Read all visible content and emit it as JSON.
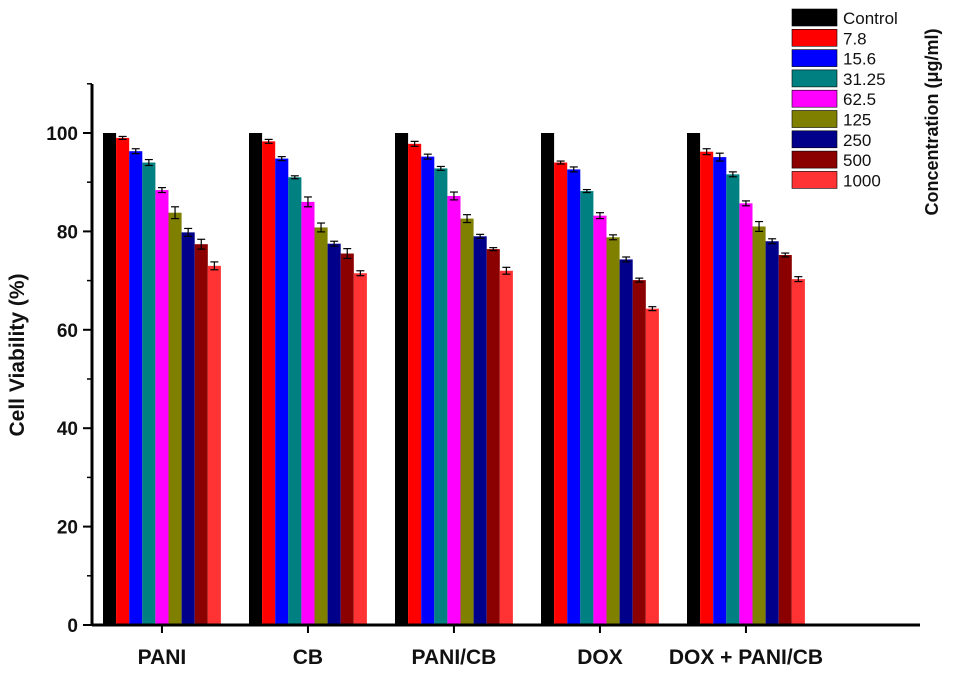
{
  "chart_data": {
    "type": "bar",
    "title": "",
    "xlabel": "",
    "ylabel": "Cell Viability (%)",
    "ylim": [
      0,
      110
    ],
    "yticks": [
      0,
      20,
      40,
      60,
      80,
      100
    ],
    "categories": [
      "PANI",
      "CB",
      "PANI/CB",
      "DOX",
      "DOX + PANI/CB"
    ],
    "legend_title": "Concentration (μg/ml)",
    "legend_position": "top-right",
    "grid": false,
    "series": [
      {
        "name": "Control",
        "color": "#000000",
        "values": [
          100,
          100,
          100,
          100,
          100
        ],
        "errors": [
          0,
          0,
          0,
          0,
          0
        ]
      },
      {
        "name": "7.8",
        "color": "#ff0000",
        "values": [
          99,
          98.3,
          97.8,
          94,
          96.2
        ],
        "errors": [
          0.3,
          0.4,
          0.5,
          0.3,
          0.6
        ]
      },
      {
        "name": "15.6",
        "color": "#0000ff",
        "values": [
          96.3,
          94.8,
          95.2,
          92.6,
          95.1
        ],
        "errors": [
          0.5,
          0.4,
          0.5,
          0.5,
          0.8
        ]
      },
      {
        "name": "31.25",
        "color": "#008080",
        "values": [
          94,
          91,
          92.8,
          88.2,
          91.6
        ],
        "errors": [
          0.6,
          0.3,
          0.4,
          0.3,
          0.5
        ]
      },
      {
        "name": "62.5",
        "color": "#ff00ff",
        "values": [
          88.4,
          86,
          87.2,
          83.2,
          85.7
        ],
        "errors": [
          0.5,
          1,
          0.8,
          0.6,
          0.5
        ]
      },
      {
        "name": "125",
        "color": "#808000",
        "values": [
          83.8,
          80.8,
          82.6,
          78.8,
          81
        ],
        "errors": [
          1.2,
          0.9,
          0.8,
          0.5,
          1
        ]
      },
      {
        "name": "250",
        "color": "#00008b",
        "values": [
          79.8,
          77.5,
          79,
          74.3,
          78
        ],
        "errors": [
          0.8,
          0.5,
          0.4,
          0.5,
          0.5
        ]
      },
      {
        "name": "500",
        "color": "#8b0000",
        "values": [
          77.4,
          75.5,
          76.4,
          70.1,
          75.2
        ],
        "errors": [
          1,
          1,
          0.3,
          0.4,
          0.4
        ]
      },
      {
        "name": "1000",
        "color": "#ff3333",
        "values": [
          73,
          71.5,
          72,
          64.3,
          70.3
        ],
        "errors": [
          0.8,
          0.5,
          0.7,
          0.4,
          0.5
        ]
      }
    ]
  }
}
